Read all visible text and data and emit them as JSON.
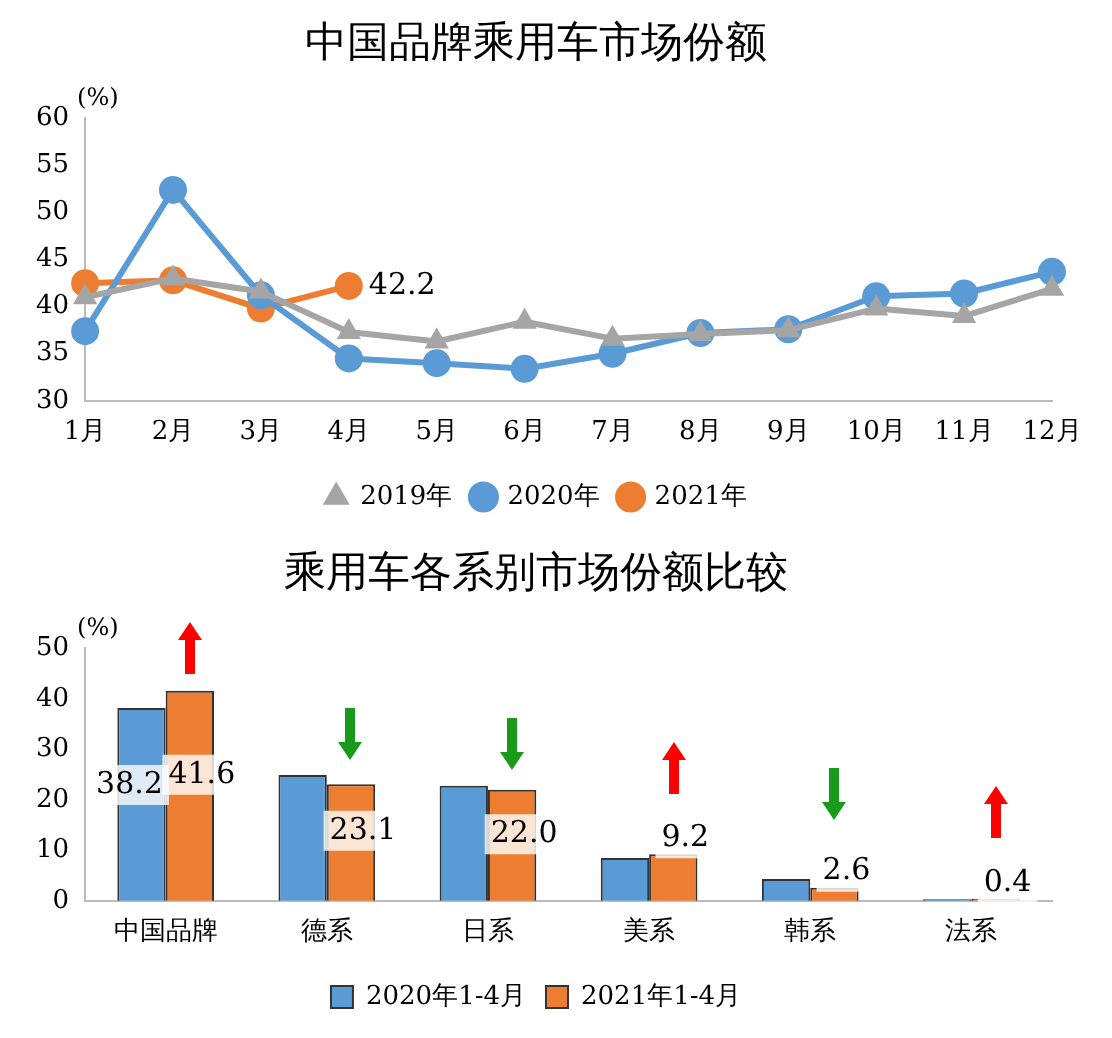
{
  "chart_data": [
    {
      "type": "line",
      "title": "中国品牌乘用车市场份额",
      "ylabel": "(%)",
      "categories": [
        "1月",
        "2月",
        "3月",
        "4月",
        "5月",
        "6月",
        "7月",
        "8月",
        "9月",
        "10月",
        "11月",
        "12月"
      ],
      "series": [
        {
          "name": "2019年",
          "color": "#a5a5a5",
          "marker": "triangle",
          "values": [
            41.0,
            43.0,
            41.6,
            37.3,
            36.3,
            38.4,
            36.6,
            37.1,
            37.5,
            39.8,
            39.0,
            41.9
          ]
        },
        {
          "name": "2020年",
          "color": "#5b9bd5",
          "marker": "circle",
          "values": [
            37.4,
            52.4,
            41.2,
            34.5,
            34.0,
            33.4,
            35.0,
            37.2,
            37.6,
            41.1,
            41.4,
            43.7
          ]
        },
        {
          "name": "2021年",
          "color": "#ed7d31",
          "marker": "circle",
          "values": [
            42.5,
            42.8,
            39.8,
            42.2,
            null,
            null,
            null,
            null,
            null,
            null,
            null,
            null
          ],
          "value_labels": [
            null,
            null,
            null,
            "42.2",
            null,
            null,
            null,
            null,
            null,
            null,
            null,
            null
          ]
        }
      ],
      "ylim": [
        30,
        60
      ],
      "yticks": [
        30,
        35,
        40,
        45,
        50,
        55,
        60
      ],
      "grid": false,
      "legend": "bottom",
      "line_style": "solid"
    },
    {
      "type": "bar",
      "title": "乘用车各系别市场份额比较",
      "ylabel": "(%)",
      "categories": [
        "中国品牌",
        "德系",
        "日系",
        "美系",
        "韩系",
        "法系"
      ],
      "series": [
        {
          "name": "2020年1-4月",
          "color": "#5b9bd5",
          "values": [
            38.2,
            24.9,
            22.8,
            8.5,
            4.3,
            0.3
          ],
          "value_labels": [
            "38.2",
            null,
            null,
            null,
            null,
            null
          ]
        },
        {
          "name": "2021年1-4月",
          "color": "#ed7d31",
          "values": [
            41.6,
            23.1,
            22.0,
            9.2,
            2.6,
            0.4
          ],
          "value_labels": [
            "41.6",
            "23.1",
            "22.0",
            "9.2",
            "2.6",
            "0.4"
          ]
        }
      ],
      "ylim": [
        0,
        50
      ],
      "yticks": [
        0,
        10,
        20,
        30,
        40,
        50
      ],
      "grid": false,
      "legend": "bottom"
    }
  ]
}
